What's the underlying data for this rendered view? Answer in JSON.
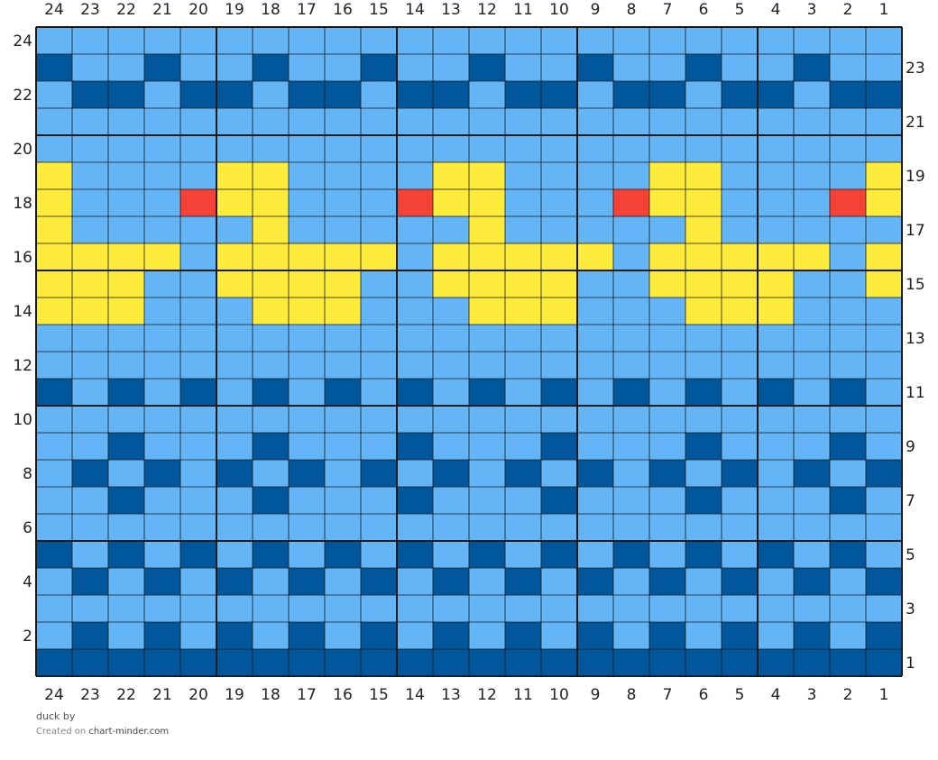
{
  "chart_data": {
    "type": "table",
    "columns": 24,
    "rows": 24,
    "column_labels": [
      "24",
      "23",
      "22",
      "21",
      "20",
      "19",
      "18",
      "17",
      "16",
      "15",
      "14",
      "13",
      "12",
      "11",
      "10",
      "9",
      "8",
      "7",
      "6",
      "5",
      "4",
      "3",
      "2",
      "1"
    ],
    "left_row_labels": [
      "24",
      "22",
      "20",
      "18",
      "16",
      "14",
      "12",
      "10",
      "8",
      "6",
      "4",
      "2"
    ],
    "right_row_labels": [
      "23",
      "21",
      "19",
      "17",
      "15",
      "13",
      "11",
      "9",
      "7",
      "5",
      "3",
      "1"
    ],
    "legend": {
      "L": "#64b5f6",
      "D": "#01579b",
      "Y": "#ffeb3b",
      "R": "#f44336"
    },
    "grid_line_color": "#1a1a1a",
    "grid_major_every": 5,
    "cells": [
      "LLLLLLLLLLLLLLLLLLLLLLLL",
      "DLLDLLDLLDLLDLLDLLDLLDLL",
      "LDDLDDLDDLDDLDDLDDLDDLDD",
      "LLLLLLLLLLLLLLLLLLLLLLLL",
      "LLLLLLLLLLLLLLLLLLLLLLLL",
      "YLLLLYYLLLLYYLLLLYYLLLLY",
      "YLLLRYYLLLRYYLLLRYYLLLRY",
      "YLLLLLYLLLLLYLLLLLYLLLLL",
      "YYYYLYYYYYLYYYYYLYYYYYLY",
      "YYYLLYYYYLLYYYYLLYYYYLLY",
      "YYYLLLYYYLLLYYYLLLYYYLLL",
      "LLLLLLLLLLLLLLLLLLLLLLLL",
      "LLLLLLLLLLLLLLLLLLLLLLLL",
      "DLDLDLDLDLDLDLDLDLDLDLDL",
      "LLLLLLLLLLLLLLLLLLLLLLLL",
      "LLDLLLDLLLDLLLDLLLDLLLDL",
      "LDLDLDLDLDLDLDLDLDLDLDLD",
      "LLDLLLDLLLDLLLDLLLDLLLDL",
      "LLLLLLLLLLLLLLLLLLLLLLLL",
      "DLDLDLDLDLDLDLDLDLDLDLDL",
      "LDLDLDLDLDLDLDLDLDLDLDLD",
      "LLLLLLLLLLLLLLLLLLLLLLLL",
      "LDLDLDLDLDLDLDLDLDLDLDLD",
      "DDDDDDDDDDDDDDDDDDDDDDDD"
    ]
  },
  "footer": {
    "title": "duck",
    "by": "by",
    "created_on": "Created on",
    "site": "chart-minder.com"
  }
}
